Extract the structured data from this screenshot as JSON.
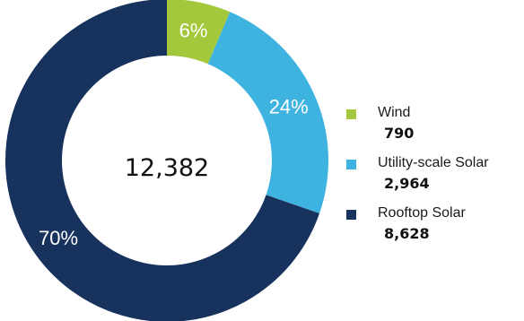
{
  "chart_data": {
    "type": "pie",
    "subtype": "donut",
    "total_label": "12,382",
    "series": [
      {
        "name": "Wind",
        "value": 790,
        "value_label": "790",
        "percent_label": "6%",
        "color": "#a4c83b"
      },
      {
        "name": "Utility-scale Solar",
        "value": 2964,
        "value_label": "2,964",
        "percent_label": "24%",
        "color": "#3fb3e0"
      },
      {
        "name": "Rooftop Solar",
        "value": 8628,
        "value_label": "8,628",
        "percent_label": "70%",
        "color": "#18325e"
      }
    ],
    "legend_position": "right"
  }
}
